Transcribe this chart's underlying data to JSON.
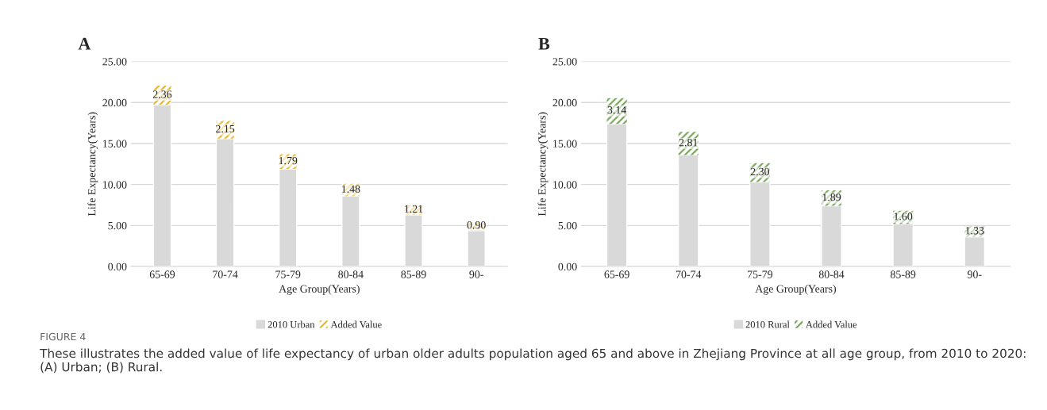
{
  "chart_data": [
    {
      "type": "bar",
      "title": "A",
      "xlabel": "Age Group(Years)",
      "ylabel": "Life Expectancy(Years)",
      "stacked": true,
      "grid": "y",
      "legend": "bottom",
      "categories": [
        "65-69",
        "70-74",
        "75-79",
        "80-84",
        "85-89",
        "90-"
      ],
      "series": [
        {
          "name": "2010 Urban",
          "color": "#d9d9d9",
          "values": [
            19.7,
            15.6,
            11.9,
            8.6,
            6.3,
            4.5
          ]
        },
        {
          "name": "Added Value",
          "color": "#e6b422",
          "values": [
            2.36,
            2.15,
            1.79,
            1.48,
            1.21,
            0.9
          ],
          "value_labels": [
            "2.36",
            "2.15",
            "1.79",
            "1.48",
            "1.21",
            "0.90"
          ]
        }
      ],
      "ylim": [
        0,
        25
      ],
      "yticks": [
        {
          "value": 0,
          "label": "0.00"
        },
        {
          "value": 5,
          "label": "5.00"
        },
        {
          "value": 10,
          "label": "10.00"
        },
        {
          "value": 15,
          "label": "15.00"
        },
        {
          "value": 20,
          "label": "20.00"
        },
        {
          "value": 25,
          "label": "25.00"
        }
      ],
      "annotations": [
        "FIGURE 4",
        "These illustrates the added value of life expectancy of urban older adults population aged 65 and above in Zhejiang Province at all age group, from 2010 to 2020: (A) Urban; (B) Rural."
      ]
    },
    {
      "type": "bar",
      "title": "B",
      "xlabel": "Age Group(Years)",
      "ylabel": "Life Expectancy(Years)",
      "stacked": true,
      "grid": "y",
      "legend": "bottom",
      "categories": [
        "65-69",
        "70-74",
        "75-79",
        "80-84",
        "85-89",
        "90-"
      ],
      "series": [
        {
          "name": "2010 Rural",
          "color": "#d9d9d9",
          "values": [
            17.4,
            13.6,
            10.3,
            7.4,
            5.2,
            3.6
          ]
        },
        {
          "name": "Added Value",
          "color": "#70a050",
          "values": [
            3.14,
            2.81,
            2.3,
            1.89,
            1.6,
            1.33
          ],
          "value_labels": [
            "3.14",
            "2.81",
            "2.30",
            "1.89",
            "1.60",
            "1.33"
          ]
        }
      ],
      "ylim": [
        0,
        25
      ],
      "yticks": [
        {
          "value": 0,
          "label": "0.00"
        },
        {
          "value": 5,
          "label": "5.00"
        },
        {
          "value": 10,
          "label": "10.00"
        },
        {
          "value": 15,
          "label": "15.00"
        },
        {
          "value": 20,
          "label": "20.00"
        },
        {
          "value": 25,
          "label": "25.00"
        }
      ]
    }
  ]
}
